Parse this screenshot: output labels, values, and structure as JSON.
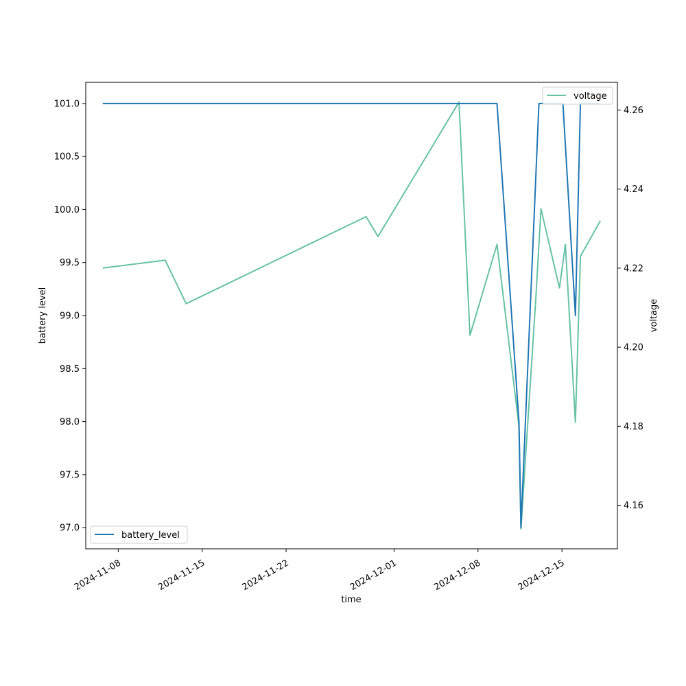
{
  "chart_data": {
    "type": "line",
    "title": "",
    "xlabel": "time",
    "ylabel": "battery level",
    "y2label": "voltage",
    "xlim": [
      "2024-11-05T07:00",
      "2024-12-19T15:00"
    ],
    "ylim": [
      96.8,
      101.2
    ],
    "y2lim": [
      4.149,
      4.267
    ],
    "x_ticks": [
      "2024-11-08",
      "2024-11-15",
      "2024-11-22",
      "2024-12-01",
      "2024-12-08",
      "2024-12-15"
    ],
    "y_ticks": [
      "97.0",
      "97.5",
      "98.0",
      "98.5",
      "99.0",
      "99.5",
      "100.0",
      "100.5",
      "101.0"
    ],
    "y2_ticks": [
      "4.16",
      "4.18",
      "4.20",
      "4.22",
      "4.24",
      "4.26"
    ],
    "grid": false,
    "series": [
      {
        "name": "battery_level",
        "axis": "left",
        "color": "#1f77b4",
        "legend": "lower-left",
        "x": [
          "2024-11-06T17:00",
          "2024-12-09T14:00",
          "2024-12-11T10:00",
          "2024-12-11T14:00",
          "2024-12-13T02:00",
          "2024-12-15T02:00",
          "2024-12-16T03:00",
          "2024-12-16T13:00",
          "2024-12-18T05:00"
        ],
        "values": [
          101.0,
          101.0,
          98.0,
          97.0,
          101.0,
          101.0,
          99.0,
          101.0,
          101.0
        ]
      },
      {
        "name": "voltage",
        "axis": "right",
        "color": "#66c2a5",
        "legend": "upper-right",
        "x": [
          "2024-11-06T17:00",
          "2024-11-11T22:00",
          "2024-11-13T16:00",
          "2024-11-28T16:00",
          "2024-11-29T16:00",
          "2024-12-06T10:00",
          "2024-12-07T08:00",
          "2024-12-09T14:00",
          "2024-12-11T10:00",
          "2024-12-11T14:00",
          "2024-12-12T20:00",
          "2024-12-13T06:00",
          "2024-12-14T19:00",
          "2024-12-15T07:00",
          "2024-12-16T03:00",
          "2024-12-16T13:00",
          "2024-12-18T05:00"
        ],
        "values": [
          4.22,
          4.222,
          4.211,
          4.233,
          4.228,
          4.262,
          4.203,
          4.226,
          4.18,
          4.154,
          4.213,
          4.235,
          4.215,
          4.226,
          4.181,
          4.223,
          4.232
        ]
      }
    ]
  }
}
